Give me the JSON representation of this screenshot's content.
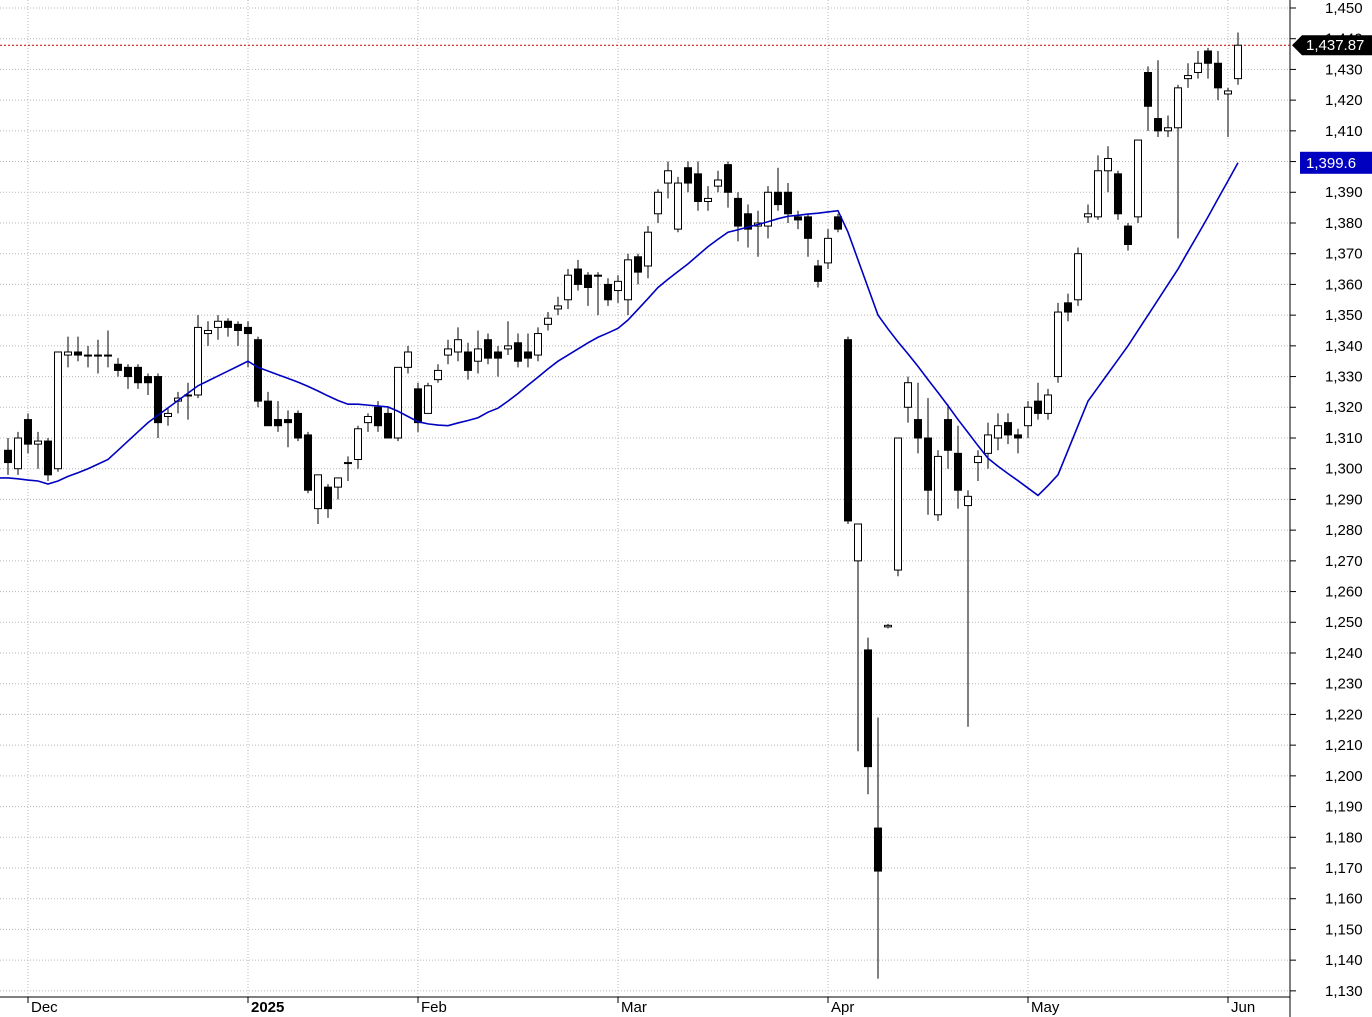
{
  "chart_data": {
    "type": "candlestick",
    "categories": [
      null,
      null,
      "Dec",
      null,
      null,
      null,
      null,
      null,
      null,
      null,
      null,
      null,
      null,
      null,
      null,
      null,
      null,
      null,
      null,
      null,
      null,
      null,
      null,
      null,
      "2025",
      null,
      null,
      null,
      null,
      null,
      null,
      null,
      null,
      null,
      null,
      null,
      null,
      null,
      null,
      null,
      null,
      "Feb",
      null,
      null,
      null,
      null,
      null,
      null,
      null,
      null,
      null,
      null,
      null,
      null,
      null,
      null,
      null,
      null,
      null,
      null,
      null,
      "Mar",
      null,
      null,
      null,
      null,
      null,
      null,
      null,
      null,
      null,
      null,
      null,
      null,
      null,
      null,
      null,
      null,
      null,
      null,
      null,
      null,
      "Apr",
      null,
      null,
      null,
      null,
      null,
      null,
      null,
      null,
      null,
      null,
      null,
      null,
      null,
      null,
      null,
      null,
      null,
      null,
      null,
      "May",
      null,
      null,
      null,
      null,
      null,
      null,
      null,
      null,
      null,
      null,
      null,
      null,
      null,
      null,
      null,
      null,
      null,
      null,
      null,
      "Jun",
      null
    ],
    "open": [
      1306,
      1300,
      1316,
      1308,
      1309,
      1300,
      1337,
      1338,
      1337,
      1337,
      1337,
      1334,
      1333,
      1333,
      1330,
      1330,
      1317,
      1322,
      1324,
      1324,
      1344,
      1346,
      1348,
      1347,
      1346,
      1342,
      1322,
      1316,
      1316,
      1318,
      1311,
      1287,
      1294,
      1294,
      1302,
      1303,
      1315,
      1320,
      1318,
      1310,
      1333,
      1326,
      1318,
      1329,
      1337,
      1338,
      1338,
      1335,
      1342,
      1338,
      1339,
      1341,
      1338,
      1337,
      1347,
      1352,
      1355,
      1365,
      1363,
      1363,
      1360,
      1358,
      1355,
      1369,
      1366,
      1383,
      1393,
      1378,
      1398,
      1396,
      1387,
      1392,
      1399,
      1388,
      1383,
      1379,
      1379,
      1390,
      1390,
      1382,
      1382,
      1366,
      1367,
      1382,
      1342,
      1270,
      1241,
      1183,
      1248.5,
      1267,
      1320,
      1316,
      1310,
      1285,
      1316,
      1305,
      1288,
      1302,
      1305,
      1310,
      1315,
      1311,
      1314,
      1322,
      1318,
      1330,
      1354,
      1355,
      1382,
      1382,
      1397,
      1396,
      1379,
      1382,
      1429,
      1414,
      1410,
      1411,
      1427,
      1429,
      1436,
      1432,
      1422,
      1427
    ],
    "high": [
      1310,
      1312,
      1318,
      1312,
      1310,
      1338,
      1343,
      1343,
      1340,
      1342,
      1345,
      1336,
      1334,
      1334,
      1331,
      1331,
      1320,
      1325,
      1328,
      1350,
      1348,
      1350,
      1349,
      1348,
      1348,
      1343,
      1325,
      1322,
      1319,
      1319,
      1312,
      1298,
      1295,
      1297,
      1304,
      1314,
      1318,
      1322,
      1320,
      1333,
      1340,
      1328,
      1328,
      1334,
      1342,
      1346,
      1341,
      1345,
      1344,
      1340,
      1348,
      1344,
      1344,
      1346,
      1351,
      1356,
      1365,
      1368,
      1364,
      1364,
      1362,
      1363,
      1370,
      1370,
      1379,
      1391,
      1400,
      1395,
      1400,
      1400,
      1392,
      1397,
      1400,
      1390,
      1386,
      1384,
      1392,
      1398,
      1393,
      1384,
      1383,
      1368,
      1378,
      1383,
      1343,
      1282,
      1245,
      1219,
      1249.5,
      1310,
      1330,
      1328,
      1323,
      1306,
      1321,
      1314,
      1293,
      1306,
      1315,
      1318,
      1318,
      1313,
      1322,
      1328,
      1326,
      1354,
      1357,
      1372,
      1386,
      1402,
      1405,
      1397,
      1380,
      1407,
      1431,
      1433,
      1415,
      1425,
      1432,
      1436,
      1437,
      1436,
      1424,
      1442
    ],
    "low": [
      1298,
      1298,
      1305,
      1300,
      1296,
      1299,
      1333,
      1335,
      1333,
      1331,
      1333,
      1330,
      1326,
      1326,
      1324,
      1310,
      1314,
      1318,
      1316,
      1323,
      1340,
      1342,
      1343,
      1340,
      1333,
      1320,
      1314,
      1312,
      1307,
      1309,
      1292,
      1282,
      1284,
      1290,
      1296,
      1300,
      1312,
      1312,
      1310,
      1309,
      1331,
      1312,
      1318,
      1328,
      1334,
      1335,
      1329,
      1331,
      1334,
      1330,
      1337,
      1333,
      1333,
      1335,
      1345,
      1350,
      1352,
      1358,
      1353,
      1350,
      1353,
      1354,
      1350,
      1360,
      1362,
      1380,
      1388,
      1377,
      1390,
      1384,
      1384,
      1390,
      1385,
      1374,
      1372,
      1369,
      1375,
      1384,
      1380,
      1378,
      1369,
      1359,
      1365,
      1377,
      1282,
      1208,
      1194,
      1134,
      1248,
      1265,
      1315,
      1305,
      1285,
      1283,
      1300,
      1287,
      1216,
      1296,
      1300,
      1306,
      1308,
      1305,
      1310,
      1316,
      1316,
      1328,
      1348,
      1353,
      1380,
      1381,
      1390,
      1381,
      1371,
      1380,
      1410,
      1408,
      1408,
      1375,
      1424,
      1427,
      1427,
      1420,
      1408,
      1425
    ],
    "close": [
      1302,
      1310,
      1308,
      1309,
      1298,
      1338,
      1338,
      1337,
      1337,
      1337,
      1337,
      1332,
      1330,
      1328,
      1328,
      1315,
      1318,
      1323,
      1324,
      1346,
      1345,
      1348,
      1346,
      1345,
      1344,
      1322,
      1314,
      1314,
      1315,
      1310,
      1293,
      1298,
      1287,
      1297,
      1302,
      1313,
      1317,
      1314,
      1310,
      1333,
      1338,
      1315,
      1327,
      1332,
      1339,
      1342,
      1332,
      1339,
      1336,
      1336,
      1340,
      1335,
      1336,
      1344,
      1349,
      1353,
      1363,
      1360,
      1359,
      1363,
      1355,
      1361,
      1368,
      1364,
      1377,
      1390,
      1397,
      1393,
      1393,
      1387,
      1388,
      1394,
      1390,
      1379,
      1378,
      1380,
      1390,
      1386,
      1383,
      1381,
      1375,
      1361,
      1375,
      1378,
      1283,
      1282,
      1203,
      1169,
      1249,
      1310,
      1328,
      1310,
      1293,
      1304,
      1306,
      1293,
      1291,
      1304,
      1311,
      1314,
      1311,
      1310,
      1320,
      1318,
      1324,
      1351,
      1351,
      1370,
      1383,
      1397,
      1401,
      1383,
      1373,
      1407,
      1418,
      1410,
      1411,
      1424,
      1428,
      1432,
      1432,
      1424,
      1423,
      1437.87
    ],
    "up_color": "#ffffff",
    "down_color": "#000000",
    "ma": {
      "color": "#0000c0",
      "values": [
        1297,
        1296.7,
        1296.3,
        1296,
        1295,
        1296,
        1297.5,
        1298.7,
        1300,
        1301.5,
        1303,
        1306,
        1309,
        1312,
        1315,
        1317.4,
        1319.8,
        1322.2,
        1324.6,
        1327,
        1328.6,
        1330.2,
        1331.8,
        1333.4,
        1335,
        1333,
        1331.8,
        1330.6,
        1329.4,
        1328.2,
        1326.8,
        1325.3,
        1323.7,
        1322.2,
        1321,
        1321,
        1320.7,
        1320.4,
        1320.1,
        1318.7,
        1317,
        1315.3,
        1314.6,
        1314.2,
        1314,
        1314.9,
        1315.7,
        1316.6,
        1318.4,
        1319.7,
        1322,
        1324.5,
        1327.2,
        1329.8,
        1332.5,
        1335,
        1337,
        1339,
        1341,
        1342.8,
        1344.2,
        1345.7,
        1348.4,
        1351.9,
        1355.4,
        1359,
        1361.7,
        1364.2,
        1366.7,
        1369.5,
        1372.3,
        1374.7,
        1377,
        1377.8,
        1378.7,
        1379.5,
        1380.4,
        1381.4,
        1382.2,
        1382.5,
        1382.9,
        1383.2,
        1383.6,
        1384,
        1377,
        1368,
        1359,
        1350,
        1345.5,
        1341.3,
        1337.4,
        1333.3,
        1329,
        1324.8,
        1320.5,
        1316,
        1311.8,
        1307.5,
        1303.4,
        1300.8,
        1298.4,
        1296.1,
        1293.7,
        1291.3,
        1294.5,
        1298,
        1306,
        1314,
        1322,
        1326.5,
        1331,
        1335.5,
        1340,
        1345,
        1350,
        1355,
        1360,
        1365,
        1370.7,
        1376.3,
        1382,
        1387.9,
        1393.7,
        1399.6
      ]
    },
    "last_price": {
      "value": 1437.87,
      "label": "1,437.87",
      "color": "#cc0000"
    },
    "ma_last": {
      "value": 1399.6,
      "label": "1,399.6"
    },
    "ylim": [
      1128,
      1452.6
    ],
    "yticks": [
      {
        "value": 1130,
        "label": "1,130"
      },
      {
        "value": 1140,
        "label": "1,140"
      },
      {
        "value": 1150,
        "label": "1,150"
      },
      {
        "value": 1160,
        "label": "1,160"
      },
      {
        "value": 1170,
        "label": "1,170"
      },
      {
        "value": 1180,
        "label": "1,180"
      },
      {
        "value": 1190,
        "label": "1,190"
      },
      {
        "value": 1200,
        "label": "1,200"
      },
      {
        "value": 1210,
        "label": "1,210"
      },
      {
        "value": 1220,
        "label": "1,220"
      },
      {
        "value": 1230,
        "label": "1,230"
      },
      {
        "value": 1240,
        "label": "1,240"
      },
      {
        "value": 1250,
        "label": "1,250"
      },
      {
        "value": 1260,
        "label": "1,260"
      },
      {
        "value": 1270,
        "label": "1,270"
      },
      {
        "value": 1280,
        "label": "1,280"
      },
      {
        "value": 1290,
        "label": "1,290"
      },
      {
        "value": 1300,
        "label": "1,300"
      },
      {
        "value": 1310,
        "label": "1,310"
      },
      {
        "value": 1320,
        "label": "1,320"
      },
      {
        "value": 1330,
        "label": "1,330"
      },
      {
        "value": 1340,
        "label": "1,340"
      },
      {
        "value": 1350,
        "label": "1,350"
      },
      {
        "value": 1360,
        "label": "1,360"
      },
      {
        "value": 1370,
        "label": "1,370"
      },
      {
        "value": 1380,
        "label": "1,380"
      },
      {
        "value": 1390,
        "label": "1,390"
      },
      {
        "value": 1400,
        "label": "1,400"
      },
      {
        "value": 1410,
        "label": "1,410"
      },
      {
        "value": 1420,
        "label": "1,420"
      },
      {
        "value": 1430,
        "label": "1,430"
      },
      {
        "value": 1440,
        "label": "1,440"
      },
      {
        "value": 1450,
        "label": "1,450"
      }
    ],
    "grid": true
  }
}
